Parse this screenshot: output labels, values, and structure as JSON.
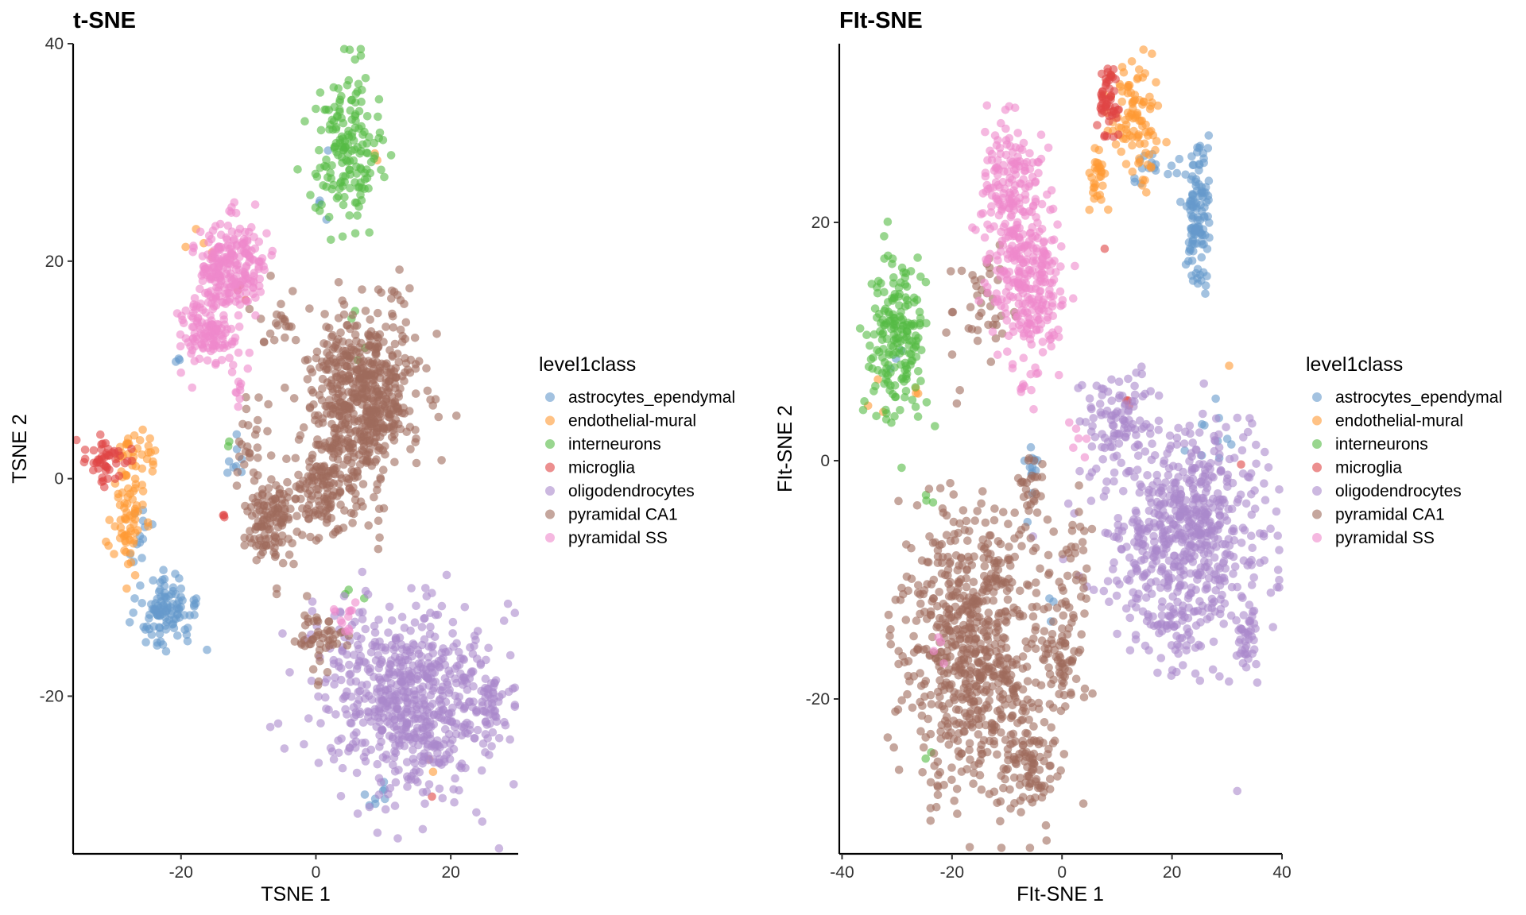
{
  "page": {
    "background": "#ffffff"
  },
  "legend": {
    "title": "level1class",
    "entries": [
      {
        "label": "astrocytes_ependymal",
        "color": "#6699cc"
      },
      {
        "label": "endothelial-mural",
        "color": "#ff9933"
      },
      {
        "label": "interneurons",
        "color": "#55bb44"
      },
      {
        "label": "microglia",
        "color": "#e04444"
      },
      {
        "label": "oligodendrocytes",
        "color": "#aa88cc"
      },
      {
        "label": "pyramidal CA1",
        "color": "#9e6b5c"
      },
      {
        "label": "pyramidal SS",
        "color": "#ee88cc"
      }
    ]
  },
  "panels": [
    {
      "title": "t-SNE",
      "xlabel": "TSNE 1",
      "ylabel": "TSNE 2"
    },
    {
      "title": "FIt-SNE",
      "xlabel": "FIt-SNE 1",
      "ylabel": "FIt-SNE 2"
    }
  ],
  "chart_data": [
    {
      "type": "scatter",
      "title": "t-SNE",
      "xlabel": "TSNE 1",
      "ylabel": "TSNE 2",
      "xlim": [
        -36,
        30
      ],
      "ylim": [
        -34.5,
        40
      ],
      "xticks": [
        -20,
        0,
        20
      ],
      "yticks": [
        -20,
        0,
        20,
        40
      ],
      "legend_position": "right",
      "grid": false,
      "point_alpha": 0.6,
      "series": [
        {
          "name": "astrocytes_ependymal",
          "clusters": [
            {
              "x": -22.5,
              "y": -12.5,
              "sx": 2.2,
              "sy": 1.7,
              "n": 110
            },
            {
              "x": -26,
              "y": -5,
              "sx": 1.2,
              "sy": 1.5,
              "n": 12
            },
            {
              "x": -12,
              "y": 2,
              "sx": 0.8,
              "sy": 1.5,
              "n": 8
            },
            {
              "x": 9,
              "y": -29,
              "sx": 1,
              "sy": 1.2,
              "n": 8
            },
            {
              "x": 2,
              "y": 28,
              "sx": 1.2,
              "sy": 4,
              "n": 4
            },
            {
              "x": -20,
              "y": 11,
              "sx": 0.7,
              "sy": 0.5,
              "n": 3
            }
          ]
        },
        {
          "name": "endothelial-mural",
          "clusters": [
            {
              "x": -28,
              "y": -2.5,
              "sx": 1.2,
              "sy": 3,
              "n": 85
            },
            {
              "x": -25.5,
              "y": 2.5,
              "sx": 1,
              "sy": 1.2,
              "n": 15
            },
            {
              "x": -17,
              "y": 21.5,
              "sx": 1,
              "sy": 0.8,
              "n": 5
            },
            {
              "x": 9,
              "y": 29.5,
              "sx": 0.6,
              "sy": 0.5,
              "n": 2
            },
            {
              "x": 17,
              "y": -28,
              "sx": 0.8,
              "sy": 0.8,
              "n": 2
            }
          ]
        },
        {
          "name": "interneurons",
          "clusters": [
            {
              "x": 4.5,
              "y": 30.5,
              "sx": 2.5,
              "sy": 3.5,
              "n": 170
            },
            {
              "x": 6.5,
              "y": 13,
              "sx": 1.5,
              "sy": 3,
              "n": 4
            },
            {
              "x": 6,
              "y": -10.5,
              "sx": 1,
              "sy": 0.5,
              "n": 3
            },
            {
              "x": -13,
              "y": 3,
              "sx": 0.5,
              "sy": 0.5,
              "n": 2
            }
          ]
        },
        {
          "name": "microglia",
          "clusters": [
            {
              "x": -31,
              "y": 1.5,
              "sx": 1.6,
              "sy": 1.2,
              "n": 50
            },
            {
              "x": -13.5,
              "y": -3.5,
              "sx": 0.8,
              "sy": 0.3,
              "n": 3
            },
            {
              "x": -11,
              "y": 17,
              "sx": 0.6,
              "sy": 0.8,
              "n": 3
            },
            {
              "x": 17,
              "y": -29,
              "sx": 0.5,
              "sy": 0.3,
              "n": 1
            }
          ]
        },
        {
          "name": "oligodendrocytes",
          "clusters": [
            {
              "x": 14,
              "y": -20.5,
              "sx": 6.5,
              "sy": 4.5,
              "n": 650
            },
            {
              "x": 26,
              "y": -21,
              "sx": 1,
              "sy": 1.5,
              "n": 30
            },
            {
              "x": 5,
              "y": -13,
              "sx": 1.5,
              "sy": 1.5,
              "n": 15
            }
          ]
        },
        {
          "name": "pyramidal CA1",
          "clusters": [
            {
              "x": 7,
              "y": 7.5,
              "sx": 4,
              "sy": 4,
              "n": 600
            },
            {
              "x": 1,
              "y": -1,
              "sx": 2.5,
              "sy": 2.2,
              "n": 140
            },
            {
              "x": -7,
              "y": -4,
              "sx": 1.8,
              "sy": 2,
              "n": 120
            },
            {
              "x": -9,
              "y": 3,
              "sx": 1.5,
              "sy": 2.5,
              "n": 30
            },
            {
              "x": 0,
              "y": -14.5,
              "sx": 2,
              "sy": 1.5,
              "n": 50
            },
            {
              "x": -6,
              "y": 14,
              "sx": 1.5,
              "sy": 1.5,
              "n": 20
            }
          ]
        },
        {
          "name": "pyramidal SS",
          "clusters": [
            {
              "x": -12.5,
              "y": 19.5,
              "sx": 2.5,
              "sy": 2,
              "n": 230
            },
            {
              "x": -16,
              "y": 13.5,
              "sx": 2.2,
              "sy": 1.5,
              "n": 130
            },
            {
              "x": -11.5,
              "y": 7.5,
              "sx": 0.6,
              "sy": 0.8,
              "n": 8
            },
            {
              "x": 4,
              "y": -13,
              "sx": 1,
              "sy": 1.5,
              "n": 12
            }
          ]
        }
      ]
    },
    {
      "type": "scatter",
      "title": "FIt-SNE",
      "xlabel": "FIt-SNE 1",
      "ylabel": "FIt-SNE 2",
      "xlim": [
        -40.5,
        40
      ],
      "ylim": [
        -33,
        35
      ],
      "xticks": [
        -40,
        -20,
        0,
        20,
        40
      ],
      "yticks": [
        -20,
        0,
        20
      ],
      "legend_position": "right",
      "grid": false,
      "point_alpha": 0.6,
      "series": [
        {
          "name": "astrocytes_ependymal",
          "clusters": [
            {
              "x": 24.5,
              "y": 20.5,
              "sx": 1.3,
              "sy": 2.8,
              "n": 120
            },
            {
              "x": 17,
              "y": 25,
              "sx": 2.2,
              "sy": 1.2,
              "n": 15
            },
            {
              "x": -5.5,
              "y": -1.5,
              "sx": 0.8,
              "sy": 2.2,
              "n": 12
            },
            {
              "x": 28,
              "y": 2.5,
              "sx": 2,
              "sy": 2,
              "n": 10
            },
            {
              "x": -2,
              "y": -12,
              "sx": 0.5,
              "sy": 1,
              "n": 3
            },
            {
              "x": -30,
              "y": 9,
              "sx": 1,
              "sy": 2,
              "n": 3
            }
          ]
        },
        {
          "name": "endothelial-mural",
          "clusters": [
            {
              "x": 13,
              "y": 28.5,
              "sx": 2.5,
              "sy": 2.5,
              "n": 100
            },
            {
              "x": 6.5,
              "y": 23.5,
              "sx": 1,
              "sy": 1.3,
              "n": 30
            },
            {
              "x": -33,
              "y": 6,
              "sx": 1,
              "sy": 1,
              "n": 3
            },
            {
              "x": -26,
              "y": 6,
              "sx": 0.8,
              "sy": 0.8,
              "n": 3
            },
            {
              "x": 30,
              "y": 7.5,
              "sx": 0.5,
              "sy": 0.5,
              "n": 1
            }
          ]
        },
        {
          "name": "interneurons",
          "clusters": [
            {
              "x": -30,
              "y": 10,
              "sx": 2.5,
              "sy": 3.5,
              "n": 190
            },
            {
              "x": -24,
              "y": -3.5,
              "sx": 0.8,
              "sy": 0.8,
              "n": 3
            },
            {
              "x": -24,
              "y": -24.5,
              "sx": 0.5,
              "sy": 0.5,
              "n": 2
            }
          ]
        },
        {
          "name": "microglia",
          "clusters": [
            {
              "x": 8.5,
              "y": 30,
              "sx": 1,
              "sy": 2,
              "n": 55
            },
            {
              "x": 11.5,
              "y": 5,
              "sx": 0.6,
              "sy": 0.4,
              "n": 3
            },
            {
              "x": 7.5,
              "y": 18,
              "sx": 0.4,
              "sy": 0.4,
              "n": 1
            },
            {
              "x": 32.5,
              "y": -0.2,
              "sx": 0.4,
              "sy": 0.4,
              "n": 1
            }
          ]
        },
        {
          "name": "oligodendrocytes",
          "clusters": [
            {
              "x": 22,
              "y": -6,
              "sx": 7,
              "sy": 4.5,
              "n": 650
            },
            {
              "x": 33.5,
              "y": -14.5,
              "sx": 1,
              "sy": 2,
              "n": 40
            },
            {
              "x": 10,
              "y": 3.5,
              "sx": 3,
              "sy": 1.8,
              "n": 80
            },
            {
              "x": 21.5,
              "y": -15,
              "sx": 1.5,
              "sy": 2,
              "n": 30
            }
          ]
        },
        {
          "name": "pyramidal CA1",
          "clusters": [
            {
              "x": -16,
              "y": -15.5,
              "sx": 6.5,
              "sy": 6,
              "n": 700
            },
            {
              "x": -6,
              "y": -25.5,
              "sx": 2.5,
              "sy": 2.5,
              "n": 100
            },
            {
              "x": 0.5,
              "y": -15.5,
              "sx": 1.8,
              "sy": 2.5,
              "n": 70
            },
            {
              "x": -5.5,
              "y": -2.5,
              "sx": 1.2,
              "sy": 1.5,
              "n": 25
            },
            {
              "x": 2.5,
              "y": -7,
              "sx": 1.2,
              "sy": 2,
              "n": 20
            },
            {
              "x": -15,
              "y": 12.5,
              "sx": 3,
              "sy": 2,
              "n": 40
            }
          ]
        },
        {
          "name": "pyramidal SS",
          "clusters": [
            {
              "x": -9,
              "y": 21.5,
              "sx": 3,
              "sy": 3.5,
              "n": 220
            },
            {
              "x": -5.5,
              "y": 14,
              "sx": 3,
              "sy": 3,
              "n": 200
            },
            {
              "x": -6.5,
              "y": 6.5,
              "sx": 0.8,
              "sy": 0.8,
              "n": 10
            },
            {
              "x": 2.5,
              "y": 2,
              "sx": 1,
              "sy": 0.8,
              "n": 6
            },
            {
              "x": -22.5,
              "y": -15.5,
              "sx": 1,
              "sy": 1,
              "n": 4
            }
          ]
        }
      ]
    }
  ]
}
